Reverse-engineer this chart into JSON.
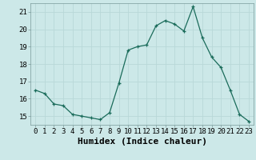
{
  "xlabel": "Humidex (Indice chaleur)",
  "x": [
    0,
    1,
    2,
    3,
    4,
    5,
    6,
    7,
    8,
    9,
    10,
    11,
    12,
    13,
    14,
    15,
    16,
    17,
    18,
    19,
    20,
    21,
    22,
    23
  ],
  "y": [
    16.5,
    16.3,
    15.7,
    15.6,
    15.1,
    15.0,
    14.9,
    14.8,
    15.2,
    16.9,
    18.8,
    19.0,
    19.1,
    20.2,
    20.5,
    20.3,
    19.9,
    21.3,
    19.5,
    18.4,
    17.8,
    16.5,
    15.1,
    14.7
  ],
  "line_color": "#1a6b5a",
  "marker": "+",
  "marker_size": 3,
  "bg_color": "#cce8e8",
  "grid_color": "#b8d8d8",
  "ylim": [
    14.5,
    21.5
  ],
  "yticks": [
    15,
    16,
    17,
    18,
    19,
    20,
    21
  ],
  "xlim": [
    -0.5,
    23.5
  ],
  "xticks": [
    0,
    1,
    2,
    3,
    4,
    5,
    6,
    7,
    8,
    9,
    10,
    11,
    12,
    13,
    14,
    15,
    16,
    17,
    18,
    19,
    20,
    21,
    22,
    23
  ],
  "xlabel_fontsize": 8,
  "tick_fontsize": 6.5
}
